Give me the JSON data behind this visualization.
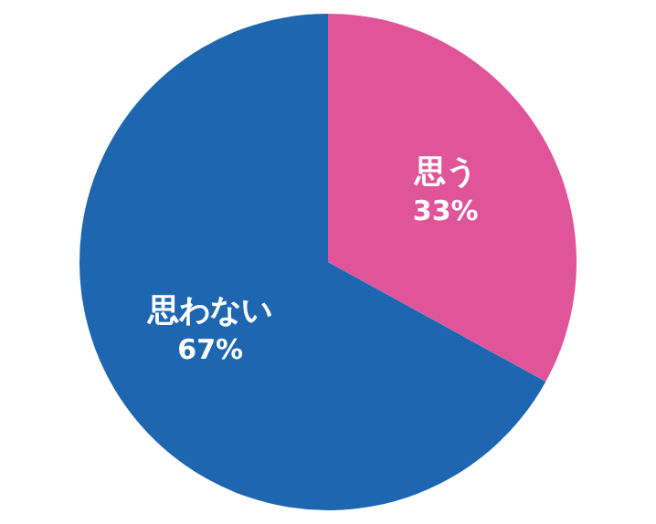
{
  "chart_data": {
    "type": "pie",
    "categories": [
      "思う",
      "思わない"
    ],
    "values": [
      33,
      67
    ],
    "colors": [
      "#e0559a",
      "#1f66b0"
    ],
    "value_labels": [
      "33%",
      "67%"
    ],
    "legend": false
  }
}
